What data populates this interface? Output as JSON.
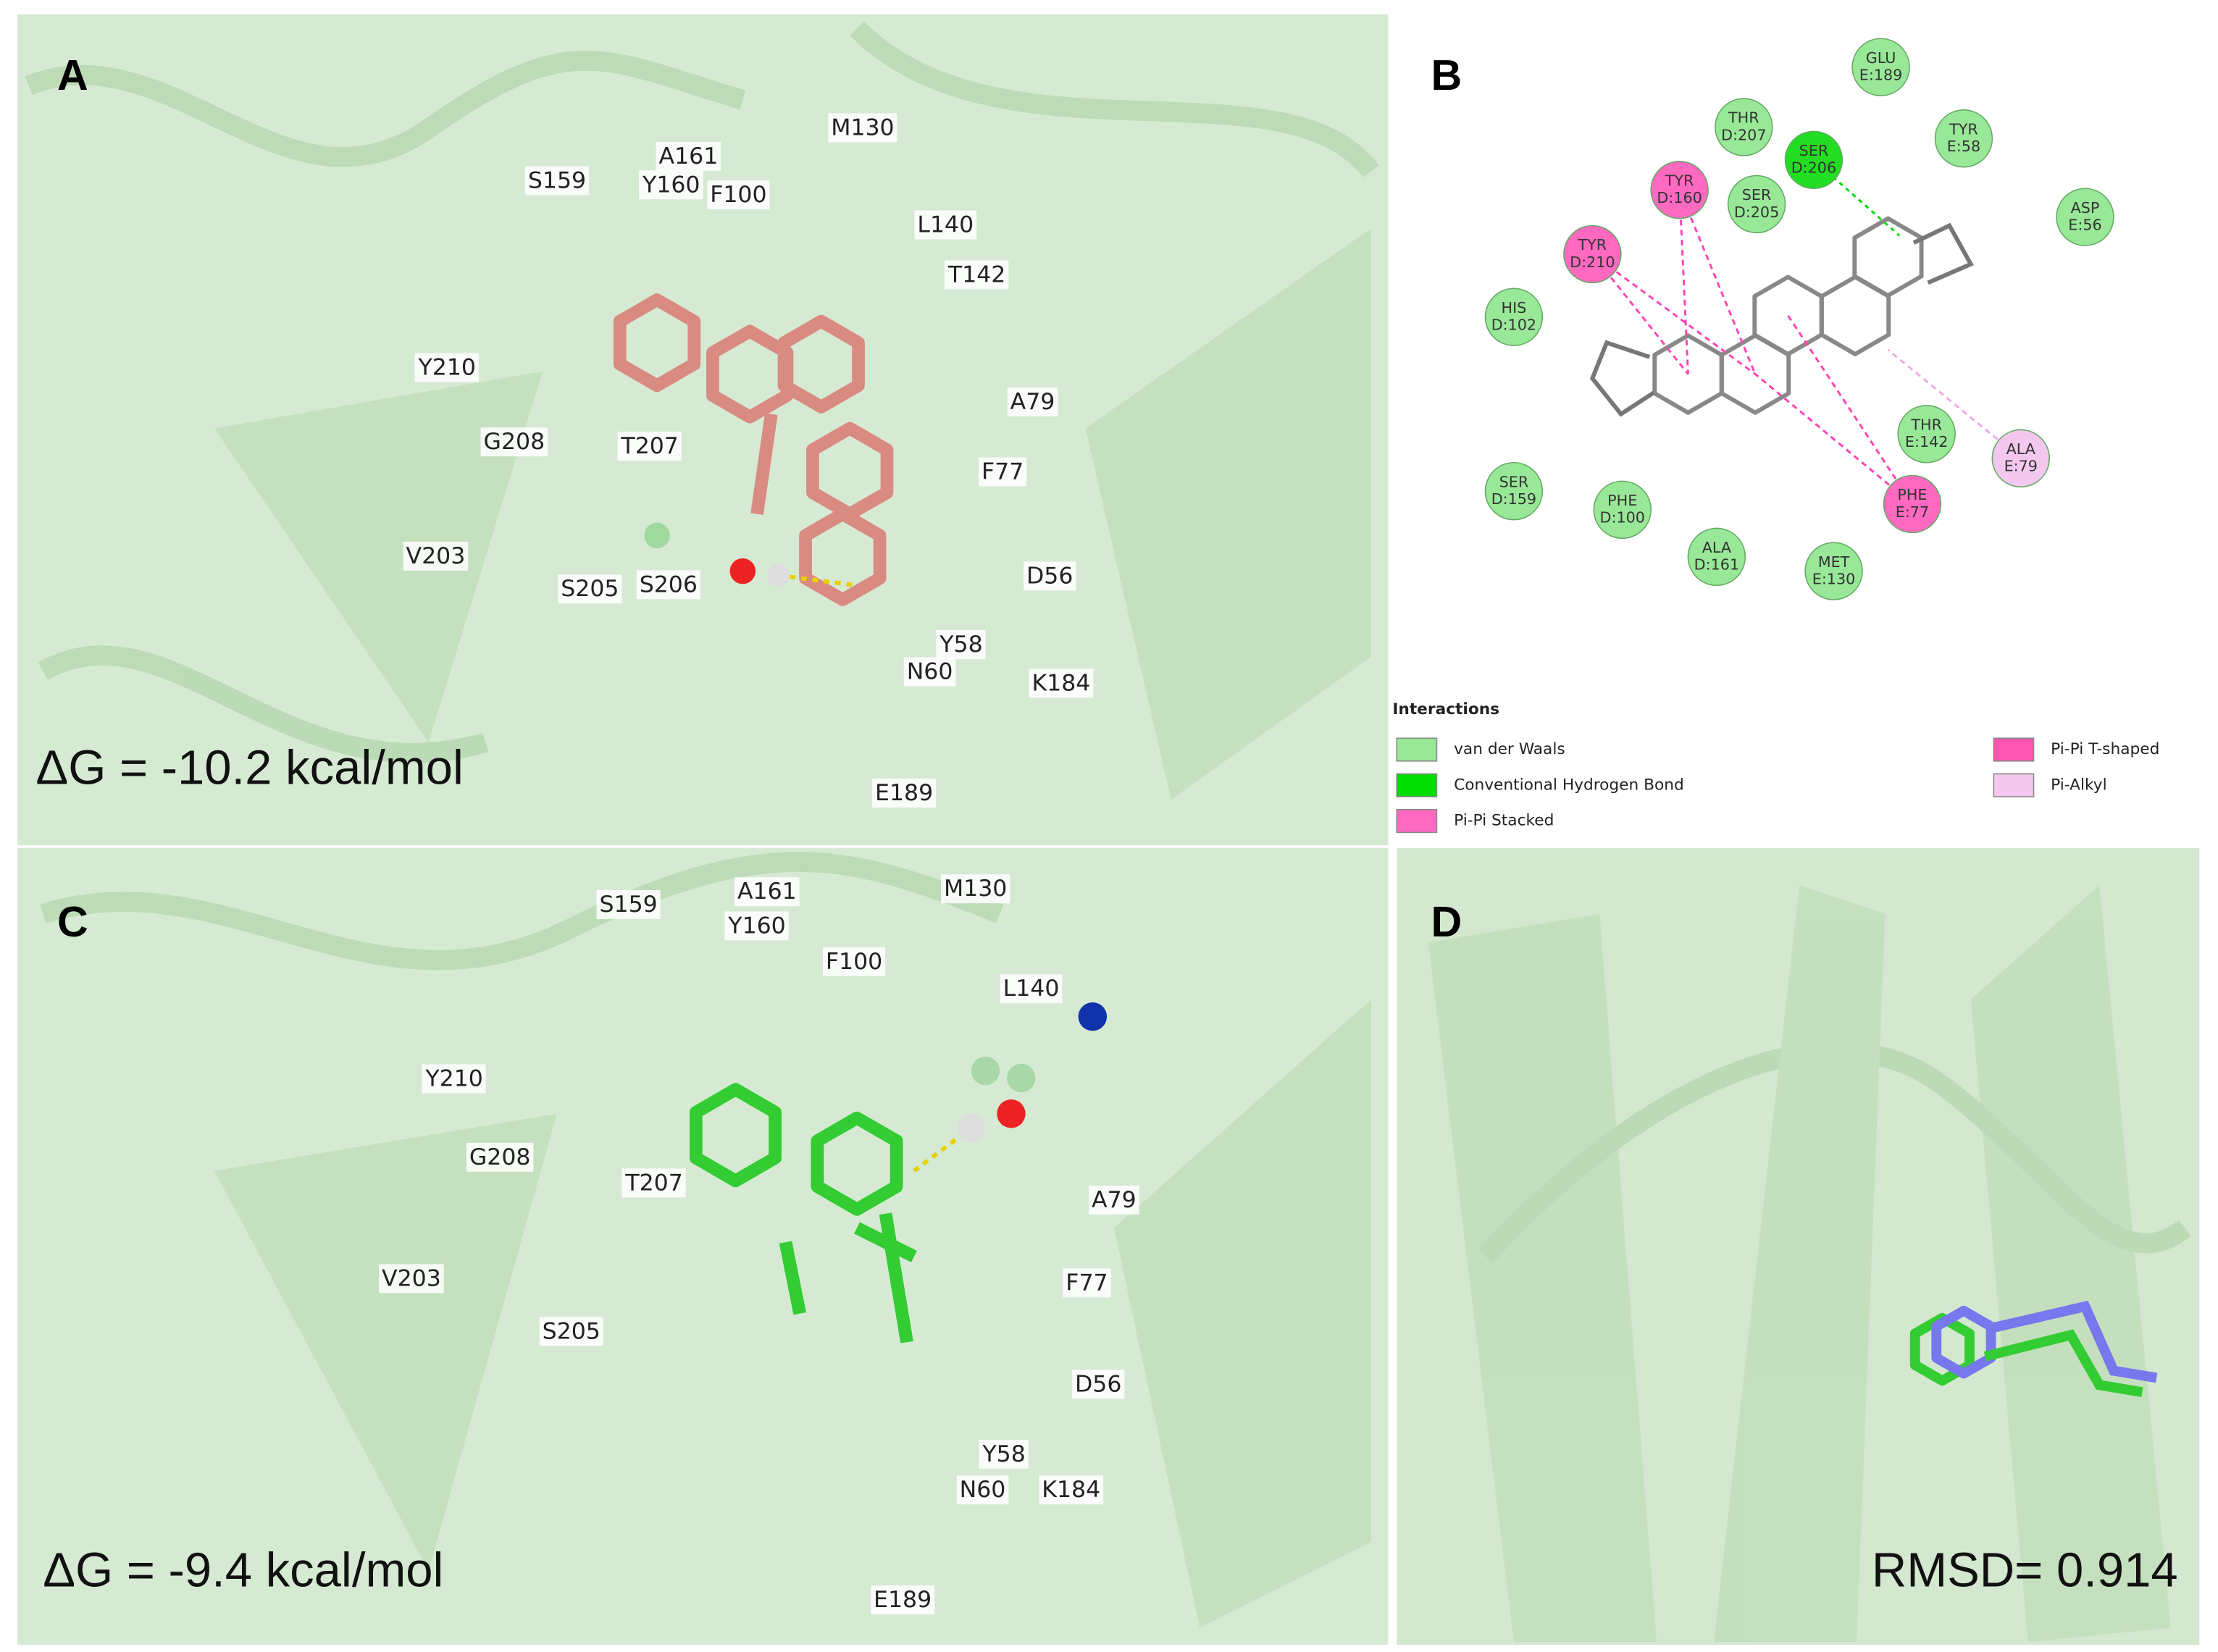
{
  "panels": [
    {
      "label": "A",
      "residues": [
        "S159",
        "A161",
        "Y160",
        "F100",
        "M130",
        "L140",
        "T142",
        "Y210",
        "G208",
        "T207",
        "A79",
        "F77",
        "V203",
        "S205",
        "S206",
        "D56",
        "Y58",
        "N60",
        "K184",
        "E189"
      ],
      "energy": "ΔG = -10.2 kcal/mol"
    },
    {
      "label": "B",
      "residues": [
        {
          "name": "GLU",
          "id": "E:189",
          "color": "#98e898"
        },
        {
          "name": "THR",
          "id": "D:207",
          "color": "#98e898"
        },
        {
          "name": "SER",
          "id": "D:206",
          "color": "#22dd22"
        },
        {
          "name": "TYR",
          "id": "E:58",
          "color": "#98e898"
        },
        {
          "name": "TYR",
          "id": "D:160",
          "color": "#ff69c0"
        },
        {
          "name": "SER",
          "id": "D:205",
          "color": "#98e898"
        },
        {
          "name": "ASP",
          "id": "E:56",
          "color": "#98e898"
        },
        {
          "name": "TYR",
          "id": "D:210",
          "color": "#ff69c0"
        },
        {
          "name": "HIS",
          "id": "D:102",
          "color": "#98e898"
        },
        {
          "name": "THR",
          "id": "E:142",
          "color": "#98e898"
        },
        {
          "name": "ALA",
          "id": "E:79",
          "color": "#f4c8ee"
        },
        {
          "name": "PHE",
          "id": "E:77",
          "color": "#ff69c0"
        },
        {
          "name": "SER",
          "id": "D:159",
          "color": "#98e898"
        },
        {
          "name": "PHE",
          "id": "D:100",
          "color": "#98e898"
        },
        {
          "name": "ALA",
          "id": "D:161",
          "color": "#98e898"
        },
        {
          "name": "MET",
          "id": "E:130",
          "color": "#98e898"
        }
      ],
      "legend_title": "Interactions",
      "legend": [
        {
          "name": "van der Waals",
          "color": "#98e898"
        },
        {
          "name": "Conventional Hydrogen Bond",
          "color": "#00dd00"
        },
        {
          "name": "Pi-Pi Stacked",
          "color": "#ff69c0"
        },
        {
          "name": "Pi-Pi T-shaped",
          "color": "#ff55b0"
        },
        {
          "name": "Pi-Alkyl",
          "color": "#f4c8ee"
        }
      ]
    },
    {
      "label": "C",
      "residues": [
        "S159",
        "A161",
        "Y160",
        "F100",
        "M130",
        "L140",
        "Y210",
        "G208",
        "T207",
        "A79",
        "F77",
        "V203",
        "S205",
        "D56",
        "Y58",
        "N60",
        "K184",
        "E189"
      ],
      "energy": "ΔG = -9.4 kcal/mol"
    },
    {
      "label": "D",
      "rmsd": "RMSD=  0.914"
    }
  ]
}
